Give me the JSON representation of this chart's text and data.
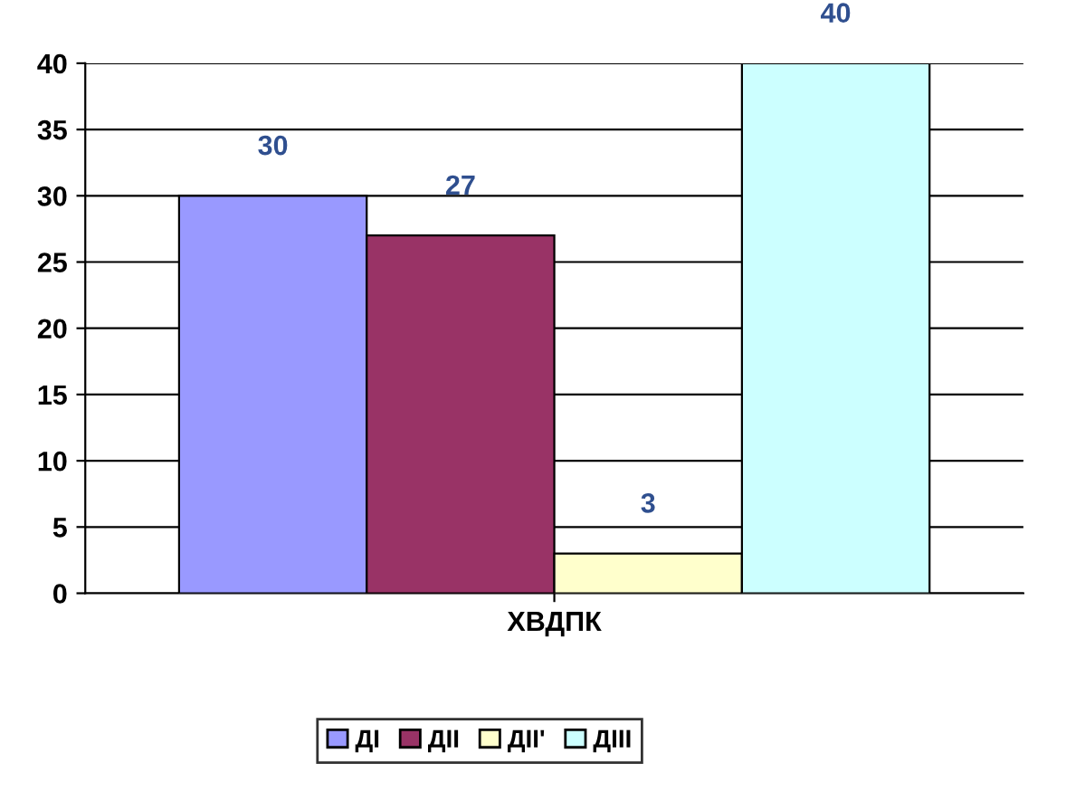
{
  "chart_data": {
    "type": "bar",
    "categories": [
      "ХВДПК"
    ],
    "series": [
      {
        "name": "ДІ",
        "color": "#9999ff",
        "values": [
          30
        ]
      },
      {
        "name": "ДІІ",
        "color": "#993366",
        "values": [
          27
        ]
      },
      {
        "name": "ДІІ'",
        "color": "#ffffcc",
        "values": [
          3
        ]
      },
      {
        "name": "ДІІІ",
        "color": "#ccffff",
        "values": [
          40
        ]
      }
    ],
    "ylim": [
      0,
      40
    ],
    "yticks": [
      0,
      5,
      10,
      15,
      20,
      25,
      30,
      35,
      40
    ],
    "grid": "y",
    "legend": "bottom",
    "data_labels": true
  }
}
